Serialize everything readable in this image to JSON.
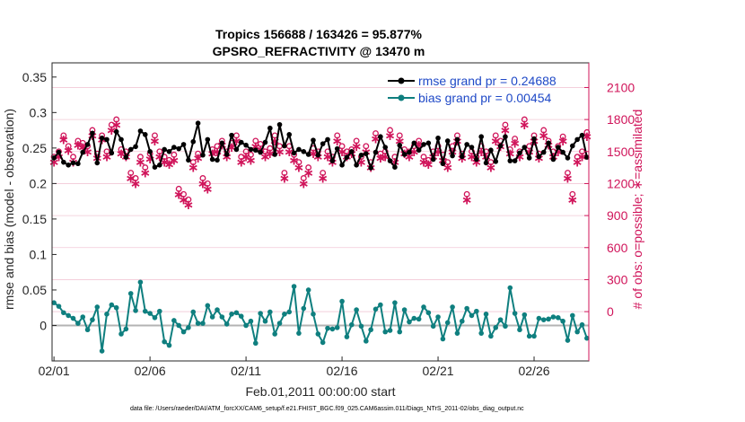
{
  "chart_data": {
    "type": "line",
    "title": "Tropics 156688 / 163426 = 95.877%",
    "subtitle": "GPSRO_REFRACTIVITY @ 13470 m",
    "xlabel": "Feb.01,2011 00:00:00 start",
    "ylabel": "rmse and bias (model - observation)",
    "y2label": "# of obs: o=possible; ∗=assimilated",
    "footnote": "data file: /Users/raeder/DAI/ATM_forcXX/CAM6_setup/f.e21.FHIST_BGC.f09_025.CAM6assim.011/Diags_NTrS_2011-02/obs_diag_output.nc",
    "x_ticks": [
      "02/01",
      "02/06",
      "02/11",
      "02/16",
      "02/21",
      "02/26"
    ],
    "x_tick_days": [
      0,
      5,
      10,
      15,
      20,
      25
    ],
    "xlim": [
      -0.1,
      27.85
    ],
    "ylim": [
      -0.05,
      0.37
    ],
    "y_ticks": [
      "0.35",
      "0.3",
      "0.25",
      "0.2",
      "0.15",
      "0.1",
      "0.05",
      "0"
    ],
    "y_tick_values": [
      0.35,
      0.3,
      0.25,
      0.2,
      0.15,
      0.1,
      0.05,
      0
    ],
    "y2lim": [
      -462,
      2331
    ],
    "y2_ticks": [
      "2100",
      "1800",
      "1500",
      "1200",
      "900",
      "600",
      "300",
      "0"
    ],
    "y2_tick_values": [
      2100,
      1800,
      1500,
      1200,
      900,
      600,
      300,
      0
    ],
    "legend": {
      "position": "top-right",
      "items": [
        {
          "label": "rmse grand pr = 0.24688",
          "color": "#000000",
          "text_color": "#1f49c7"
        },
        {
          "label": "bias grand pr = 0.00454",
          "color": "#0f7f7f",
          "text_color": "#1f49c7"
        }
      ]
    },
    "colors": {
      "rmse": "#000000",
      "bias": "#0f7f7f",
      "obs_count": "#d0145a",
      "zero_line": "#b3b3b3",
      "grid": "#f2c8d6",
      "right_axis": "#d0145a"
    },
    "series": [
      {
        "name": "rmse",
        "x": [
          0,
          0.25,
          0.5,
          0.75,
          1,
          1.25,
          1.5,
          1.75,
          2,
          2.25,
          2.5,
          2.75,
          3,
          3.25,
          3.5,
          3.75,
          4,
          4.25,
          4.5,
          4.75,
          5,
          5.25,
          5.5,
          5.75,
          6,
          6.25,
          6.5,
          6.75,
          7,
          7.25,
          7.5,
          7.75,
          8,
          8.25,
          8.5,
          8.75,
          9,
          9.25,
          9.5,
          9.75,
          10,
          10.25,
          10.5,
          10.75,
          11,
          11.25,
          11.5,
          11.75,
          12,
          12.25,
          12.5,
          12.75,
          13,
          13.25,
          13.5,
          13.75,
          14,
          14.25,
          14.5,
          14.75,
          15,
          15.25,
          15.5,
          15.75,
          16,
          16.25,
          16.5,
          16.75,
          17,
          17.25,
          17.5,
          17.75,
          18,
          18.25,
          18.5,
          18.75,
          19,
          19.25,
          19.5,
          19.75,
          20,
          20.25,
          20.5,
          20.75,
          21,
          21.25,
          21.5,
          21.75,
          22,
          22.25,
          22.5,
          22.75,
          23,
          23.25,
          23.5,
          23.75,
          24,
          24.25,
          24.5,
          24.75,
          25,
          25.25,
          25.5,
          25.75,
          26,
          26.25,
          26.5,
          26.75,
          27,
          27.25,
          27.5,
          27.75
        ],
        "values": [
          0.236,
          0.244,
          0.23,
          0.226,
          0.229,
          0.228,
          0.244,
          0.255,
          0.271,
          0.229,
          0.264,
          0.262,
          0.243,
          0.273,
          0.262,
          0.237,
          0.248,
          0.252,
          0.274,
          0.269,
          0.245,
          0.223,
          0.226,
          0.248,
          0.245,
          0.251,
          0.249,
          0.255,
          0.233,
          0.259,
          0.285,
          0.24,
          0.262,
          0.234,
          0.233,
          0.257,
          0.241,
          0.268,
          0.248,
          0.258,
          0.254,
          0.248,
          0.247,
          0.244,
          0.258,
          0.278,
          0.241,
          0.283,
          0.253,
          0.269,
          0.243,
          0.248,
          0.245,
          0.241,
          0.261,
          0.24,
          0.256,
          0.262,
          0.232,
          0.249,
          0.226,
          0.237,
          0.245,
          0.226,
          0.24,
          0.242,
          0.222,
          0.244,
          0.266,
          0.251,
          0.232,
          0.223,
          0.254,
          0.241,
          0.244,
          0.257,
          0.247,
          0.255,
          0.257,
          0.234,
          0.264,
          0.228,
          0.26,
          0.239,
          0.262,
          0.238,
          0.255,
          0.251,
          0.234,
          0.266,
          0.229,
          0.247,
          0.231,
          0.253,
          0.266,
          0.232,
          0.232,
          0.243,
          0.251,
          0.236,
          0.263,
          0.238,
          0.244,
          0.257,
          0.234,
          0.251,
          0.244,
          0.236,
          0.253,
          0.262,
          0.268,
          0.237
        ],
        "color": "#000000"
      },
      {
        "name": "bias",
        "x": [
          0,
          0.25,
          0.5,
          0.75,
          1,
          1.25,
          1.5,
          1.75,
          2,
          2.25,
          2.5,
          2.75,
          3,
          3.25,
          3.5,
          3.75,
          4,
          4.25,
          4.5,
          4.75,
          5,
          5.25,
          5.5,
          5.75,
          6,
          6.25,
          6.5,
          6.75,
          7,
          7.25,
          7.5,
          7.75,
          8,
          8.25,
          8.5,
          8.75,
          9,
          9.25,
          9.5,
          9.75,
          10,
          10.25,
          10.5,
          10.75,
          11,
          11.25,
          11.5,
          11.75,
          12,
          12.25,
          12.5,
          12.75,
          13,
          13.25,
          13.5,
          13.75,
          14,
          14.25,
          14.5,
          14.75,
          15,
          15.25,
          15.5,
          15.75,
          16,
          16.25,
          16.5,
          16.75,
          17,
          17.25,
          17.5,
          17.75,
          18,
          18.25,
          18.5,
          18.75,
          19,
          19.25,
          19.5,
          19.75,
          20,
          20.25,
          20.5,
          20.75,
          21,
          21.25,
          21.5,
          21.75,
          22,
          22.25,
          22.5,
          22.75,
          23,
          23.25,
          23.5,
          23.75,
          24,
          24.25,
          24.5,
          24.75,
          25,
          25.25,
          25.5,
          25.75,
          26,
          26.25,
          26.5,
          26.75,
          27,
          27.25,
          27.5,
          27.75
        ],
        "values": [
          0.032,
          0.027,
          0.018,
          0.014,
          0.01,
          0.003,
          0.012,
          -0.006,
          0.008,
          0.026,
          -0.036,
          0.016,
          0.029,
          0.025,
          -0.012,
          -0.005,
          0.045,
          0.021,
          0.061,
          0.02,
          0.017,
          0.011,
          0.02,
          -0.023,
          -0.028,
          0.007,
          0.0,
          -0.009,
          -0.003,
          0.019,
          0.003,
          0.003,
          0.028,
          0.012,
          0.022,
          0.012,
          0.002,
          0.016,
          0.018,
          0.013,
          -0.0,
          0.006,
          -0.025,
          0.017,
          0.006,
          0.019,
          -0.012,
          0.003,
          0.016,
          0.019,
          0.055,
          -0.011,
          0.024,
          0.05,
          0.016,
          -0.012,
          -0.024,
          -0.004,
          -0.005,
          -0.003,
          0.034,
          -0.016,
          0.001,
          0.022,
          -0.001,
          -0.022,
          -0.006,
          0.023,
          0.029,
          -0.009,
          -0.007,
          0.032,
          -0.009,
          0.022,
          0.005,
          0.01,
          0.009,
          0.026,
          0.018,
          -0.001,
          0.012,
          -0.019,
          0.004,
          0.026,
          -0.011,
          0.006,
          0.024,
          0.014,
          0.02,
          -0.011,
          0.016,
          -0.015,
          -0.003,
          0.008,
          -0.001,
          0.053,
          0.017,
          -0.006,
          0.015,
          -0.015,
          -0.015,
          0.01,
          0.008,
          0.009,
          0.012,
          0.011,
          0.006,
          -0.021,
          0.014,
          -0.009,
          0.001,
          -0.018
        ],
        "color": "#0f7f7f"
      },
      {
        "name": "obs_possible",
        "axis": "right",
        "marker": "o",
        "x": [
          0,
          0.25,
          0.5,
          0.75,
          1,
          1.25,
          1.5,
          1.75,
          2,
          2.25,
          2.5,
          2.75,
          3,
          3.25,
          3.5,
          3.75,
          4,
          4.25,
          4.5,
          4.75,
          5,
          5.25,
          5.5,
          5.75,
          6,
          6.25,
          6.5,
          6.75,
          7,
          7.25,
          7.5,
          7.75,
          8,
          8.25,
          8.5,
          8.75,
          9,
          9.25,
          9.5,
          9.75,
          10,
          10.25,
          10.5,
          10.75,
          11,
          11.25,
          11.5,
          11.75,
          12,
          12.25,
          12.5,
          12.75,
          13,
          13.25,
          13.5,
          13.75,
          14,
          14.25,
          14.5,
          14.75,
          15,
          15.25,
          15.5,
          15.75,
          16,
          16.25,
          16.5,
          16.75,
          17,
          17.25,
          17.5,
          17.75,
          18,
          18.25,
          18.5,
          18.75,
          19,
          19.25,
          19.5,
          19.75,
          20,
          20.25,
          20.5,
          20.75,
          21,
          21.25,
          21.5,
          21.75,
          22,
          22.25,
          22.5,
          22.75,
          23,
          23.25,
          23.5,
          23.75,
          24,
          24.25,
          24.5,
          24.75,
          25,
          25.25,
          25.5,
          25.75,
          26,
          26.25,
          26.5,
          26.75,
          27,
          27.25,
          27.5,
          27.75
        ],
        "values": [
          1450,
          1500,
          1650,
          1550,
          1450,
          1600,
          1580,
          1550,
          1700,
          1480,
          1650,
          1500,
          1750,
          1800,
          1520,
          1500,
          1300,
          1250,
          1450,
          1350,
          1480,
          1650,
          1500,
          1450,
          1420,
          1470,
          1150,
          1100,
          1050,
          1400,
          1480,
          1250,
          1200,
          1520,
          1550,
          1600,
          1500,
          1580,
          1650,
          1450,
          1500,
          1470,
          1600,
          1570,
          1500,
          1530,
          1650,
          1550,
          1300,
          1550,
          1470,
          1400,
          1250,
          1350,
          1530,
          1500,
          1300,
          1500,
          1450,
          1650,
          1550,
          1500,
          1520,
          1600,
          1450,
          1550,
          1400,
          1670,
          1480,
          1500,
          1700,
          1450,
          1650,
          1520,
          1500,
          1550,
          1600,
          1450,
          1420,
          1500,
          1550,
          1470,
          1400,
          1550,
          1650,
          1480,
          1100,
          1500,
          1450,
          1550,
          1500,
          1400,
          1650,
          1600,
          1750,
          1520,
          1620,
          1500,
          1800,
          1550,
          1650,
          1480,
          1700,
          1600,
          1500,
          1550,
          1640,
          1300,
          1100,
          1450,
          1500,
          1680
        ],
        "color": "#d0145a"
      },
      {
        "name": "obs_assimilated",
        "axis": "right",
        "marker": "*",
        "x": [
          0,
          0.25,
          0.5,
          0.75,
          1,
          1.25,
          1.5,
          1.75,
          2,
          2.25,
          2.5,
          2.75,
          3,
          3.25,
          3.5,
          3.75,
          4,
          4.25,
          4.5,
          4.75,
          5,
          5.25,
          5.5,
          5.75,
          6,
          6.25,
          6.5,
          6.75,
          7,
          7.25,
          7.5,
          7.75,
          8,
          8.25,
          8.5,
          8.75,
          9,
          9.25,
          9.5,
          9.75,
          10,
          10.25,
          10.5,
          10.75,
          11,
          11.25,
          11.5,
          11.75,
          12,
          12.25,
          12.5,
          12.75,
          13,
          13.25,
          13.5,
          13.75,
          14,
          14.25,
          14.5,
          14.75,
          15,
          15.25,
          15.5,
          15.75,
          16,
          16.25,
          16.5,
          16.75,
          17,
          17.25,
          17.5,
          17.75,
          18,
          18.25,
          18.5,
          18.75,
          19,
          19.25,
          19.5,
          19.75,
          20,
          20.25,
          20.5,
          20.75,
          21,
          21.25,
          21.5,
          21.75,
          22,
          22.25,
          22.5,
          22.75,
          23,
          23.25,
          23.5,
          23.75,
          24,
          24.25,
          24.5,
          24.75,
          25,
          25.25,
          25.5,
          25.75,
          26,
          26.25,
          26.5,
          26.75,
          27,
          27.25,
          27.5,
          27.75
        ],
        "values": [
          1400,
          1450,
          1610,
          1510,
          1400,
          1560,
          1540,
          1500,
          1650,
          1440,
          1610,
          1450,
          1700,
          1750,
          1480,
          1450,
          1250,
          1200,
          1400,
          1300,
          1430,
          1600,
          1450,
          1400,
          1380,
          1420,
          1100,
          1050,
          1000,
          1350,
          1440,
          1200,
          1150,
          1480,
          1500,
          1560,
          1450,
          1540,
          1600,
          1400,
          1450,
          1420,
          1550,
          1520,
          1450,
          1480,
          1600,
          1500,
          1250,
          1500,
          1420,
          1350,
          1200,
          1300,
          1480,
          1450,
          1250,
          1450,
          1400,
          1600,
          1500,
          1450,
          1480,
          1550,
          1400,
          1500,
          1350,
          1620,
          1440,
          1450,
          1650,
          1400,
          1600,
          1480,
          1450,
          1500,
          1560,
          1400,
          1380,
          1450,
          1500,
          1420,
          1350,
          1500,
          1600,
          1440,
          1050,
          1450,
          1400,
          1500,
          1450,
          1350,
          1600,
          1550,
          1700,
          1480,
          1580,
          1450,
          1750,
          1500,
          1600,
          1440,
          1650,
          1560,
          1450,
          1500,
          1600,
          1250,
          1050,
          1400,
          1450,
          1640
        ],
        "color": "#d0145a"
      }
    ]
  }
}
